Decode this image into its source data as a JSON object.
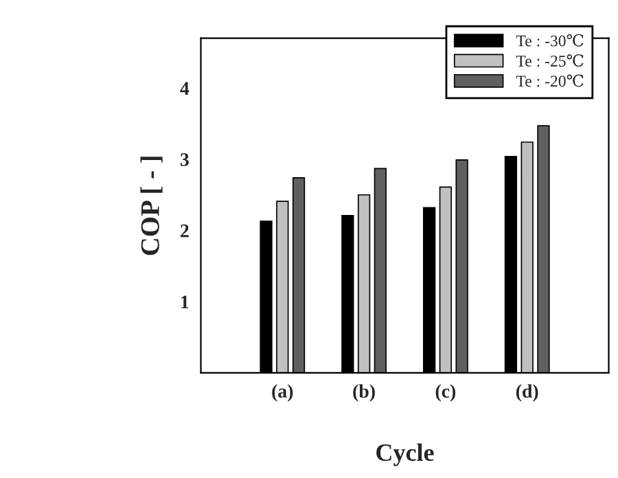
{
  "chart_data": {
    "type": "bar",
    "xlabel": "Cycle",
    "ylabel": "COP [ - ]",
    "categories": [
      "(a)",
      "(b)",
      "(c)",
      "(d)"
    ],
    "series": [
      {
        "name": "Te : -30℃",
        "color": "#000000",
        "values": [
          2.13,
          2.21,
          2.32,
          3.04
        ]
      },
      {
        "name": "Te : -25℃",
        "color": "#c0c0c0",
        "values": [
          2.41,
          2.5,
          2.61,
          3.24
        ]
      },
      {
        "name": "Te : -20℃",
        "color": "#606060",
        "values": [
          2.74,
          2.87,
          2.99,
          3.47
        ]
      }
    ],
    "ylim": [
      0,
      4.7
    ],
    "yticks": [
      1,
      2,
      3,
      4
    ],
    "grid": false,
    "legend": "top right"
  }
}
